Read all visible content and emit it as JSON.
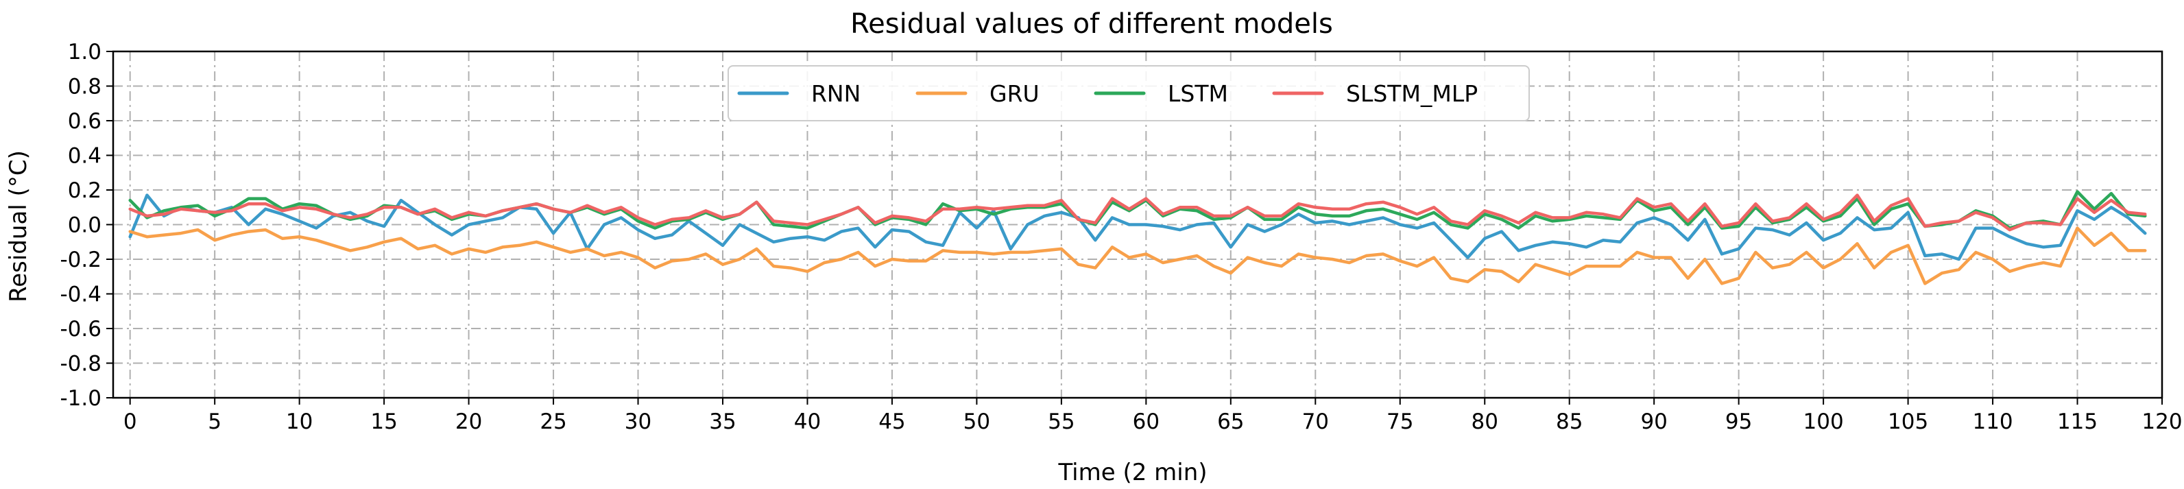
{
  "chart_data": {
    "type": "line",
    "title": "Residual values of different models",
    "xlabel": "Time (2 min)",
    "ylabel": "Residual (°C)",
    "xlim": [
      -1,
      120
    ],
    "ylim": [
      -1.0,
      1.0
    ],
    "grid": true,
    "legend_position": "top-center",
    "x_ticks": [
      0,
      5,
      10,
      15,
      20,
      25,
      30,
      35,
      40,
      45,
      50,
      55,
      60,
      65,
      70,
      75,
      80,
      85,
      90,
      95,
      100,
      105,
      110,
      115,
      120
    ],
    "x_tick_labels": [
      "0",
      "5",
      "10",
      "15",
      "20",
      "25",
      "30",
      "35",
      "40",
      "45",
      "50",
      "55",
      "60",
      "65",
      "70",
      "75",
      "80",
      "85",
      "90",
      "95",
      "100",
      "105",
      "110",
      "115",
      "120"
    ],
    "y_ticks": [
      -1.0,
      -0.8,
      -0.6,
      -0.4,
      -0.2,
      0.0,
      0.2,
      0.4,
      0.6,
      0.8,
      1.0
    ],
    "y_tick_labels": [
      "-1.0",
      "-0.8",
      "-0.6",
      "-0.4",
      "-0.2",
      "0.0",
      "0.2",
      "0.4",
      "0.6",
      "0.8",
      "1.0"
    ],
    "series": [
      {
        "name": "RNN",
        "color": "#3a9ac9",
        "values": [
          -0.07,
          0.17,
          0.05,
          0.1,
          0.08,
          0.07,
          0.1,
          0.0,
          0.09,
          0.06,
          0.02,
          -0.02,
          0.05,
          0.07,
          0.02,
          -0.01,
          0.14,
          0.07,
          0.0,
          -0.06,
          0.0,
          0.02,
          0.04,
          0.1,
          0.09,
          -0.05,
          0.07,
          -0.14,
          0.0,
          0.04,
          -0.03,
          -0.08,
          -0.06,
          0.02,
          -0.05,
          -0.12,
          0.0,
          -0.05,
          -0.1,
          -0.08,
          -0.07,
          -0.09,
          -0.04,
          -0.02,
          -0.13,
          -0.03,
          -0.04,
          -0.1,
          -0.12,
          0.07,
          -0.02,
          0.08,
          -0.14,
          0.0,
          0.05,
          0.07,
          0.04,
          -0.09,
          0.04,
          0.0,
          0.0,
          -0.01,
          -0.03,
          0.0,
          0.01,
          -0.13,
          0.0,
          -0.04,
          0.0,
          0.06,
          0.01,
          0.02,
          0.0,
          0.02,
          0.04,
          0.0,
          -0.02,
          0.01,
          -0.09,
          -0.19,
          -0.08,
          -0.04,
          -0.15,
          -0.12,
          -0.1,
          -0.11,
          -0.13,
          -0.09,
          -0.1,
          0.01,
          0.04,
          0.0,
          -0.09,
          0.03,
          -0.17,
          -0.14,
          -0.02,
          -0.03,
          -0.06,
          0.01,
          -0.09,
          -0.05,
          0.04,
          -0.03,
          -0.02,
          0.07,
          -0.18,
          -0.17,
          -0.2,
          -0.02,
          -0.02,
          -0.07,
          -0.11,
          -0.13,
          -0.12,
          0.08,
          0.03,
          0.1,
          0.04,
          -0.05
        ]
      },
      {
        "name": "GRU",
        "color": "#f8a04a",
        "values": [
          -0.04,
          -0.07,
          -0.06,
          -0.05,
          -0.03,
          -0.09,
          -0.06,
          -0.04,
          -0.03,
          -0.08,
          -0.07,
          -0.09,
          -0.12,
          -0.15,
          -0.13,
          -0.1,
          -0.08,
          -0.14,
          -0.12,
          -0.17,
          -0.14,
          -0.16,
          -0.13,
          -0.12,
          -0.1,
          -0.13,
          -0.16,
          -0.14,
          -0.18,
          -0.16,
          -0.19,
          -0.25,
          -0.21,
          -0.2,
          -0.17,
          -0.23,
          -0.2,
          -0.14,
          -0.24,
          -0.25,
          -0.27,
          -0.22,
          -0.2,
          -0.16,
          -0.24,
          -0.2,
          -0.21,
          -0.21,
          -0.15,
          -0.16,
          -0.16,
          -0.17,
          -0.16,
          -0.16,
          -0.15,
          -0.14,
          -0.23,
          -0.25,
          -0.13,
          -0.19,
          -0.17,
          -0.22,
          -0.2,
          -0.18,
          -0.24,
          -0.28,
          -0.19,
          -0.22,
          -0.24,
          -0.17,
          -0.19,
          -0.2,
          -0.22,
          -0.18,
          -0.17,
          -0.21,
          -0.24,
          -0.19,
          -0.31,
          -0.33,
          -0.26,
          -0.27,
          -0.33,
          -0.23,
          -0.26,
          -0.29,
          -0.24,
          -0.24,
          -0.24,
          -0.16,
          -0.19,
          -0.19,
          -0.31,
          -0.2,
          -0.34,
          -0.31,
          -0.16,
          -0.25,
          -0.23,
          -0.16,
          -0.25,
          -0.2,
          -0.11,
          -0.25,
          -0.16,
          -0.12,
          -0.34,
          -0.28,
          -0.26,
          -0.16,
          -0.2,
          -0.27,
          -0.24,
          -0.22,
          -0.24,
          -0.02,
          -0.12,
          -0.05,
          -0.15,
          -0.15
        ]
      },
      {
        "name": "LSTM",
        "color": "#2ca85a",
        "values": [
          0.14,
          0.04,
          0.08,
          0.1,
          0.11,
          0.05,
          0.09,
          0.15,
          0.15,
          0.09,
          0.12,
          0.11,
          0.06,
          0.03,
          0.05,
          0.11,
          0.1,
          0.06,
          0.08,
          0.03,
          0.06,
          0.05,
          0.08,
          0.1,
          0.12,
          0.09,
          0.07,
          0.1,
          0.06,
          0.09,
          0.02,
          -0.02,
          0.02,
          0.03,
          0.07,
          0.03,
          0.06,
          0.13,
          0.0,
          -0.01,
          -0.02,
          0.02,
          0.06,
          0.1,
          0.0,
          0.04,
          0.03,
          0.0,
          0.12,
          0.08,
          0.09,
          0.06,
          0.09,
          0.1,
          0.1,
          0.12,
          0.03,
          0.0,
          0.13,
          0.08,
          0.14,
          0.05,
          0.09,
          0.08,
          0.03,
          0.04,
          0.1,
          0.03,
          0.03,
          0.1,
          0.06,
          0.05,
          0.05,
          0.08,
          0.09,
          0.06,
          0.03,
          0.07,
          0.0,
          -0.02,
          0.06,
          0.03,
          -0.02,
          0.05,
          0.02,
          0.03,
          0.05,
          0.04,
          0.03,
          0.14,
          0.08,
          0.1,
          0.0,
          0.1,
          -0.02,
          -0.01,
          0.1,
          0.01,
          0.03,
          0.1,
          0.02,
          0.05,
          0.15,
          0.0,
          0.09,
          0.12,
          -0.01,
          0.0,
          0.02,
          0.08,
          0.05,
          -0.02,
          0.01,
          0.02,
          0.0,
          0.19,
          0.09,
          0.18,
          0.06,
          0.05
        ]
      },
      {
        "name": "SLSTM_MLP",
        "color": "#ef6464",
        "values": [
          0.09,
          0.05,
          0.06,
          0.09,
          0.08,
          0.07,
          0.08,
          0.12,
          0.12,
          0.08,
          0.1,
          0.09,
          0.06,
          0.04,
          0.06,
          0.1,
          0.1,
          0.06,
          0.09,
          0.04,
          0.07,
          0.05,
          0.08,
          0.1,
          0.12,
          0.09,
          0.07,
          0.11,
          0.07,
          0.1,
          0.04,
          0.0,
          0.03,
          0.04,
          0.08,
          0.04,
          0.06,
          0.13,
          0.02,
          0.01,
          0.0,
          0.03,
          0.06,
          0.1,
          0.01,
          0.05,
          0.04,
          0.02,
          0.09,
          0.09,
          0.1,
          0.09,
          0.1,
          0.11,
          0.11,
          0.14,
          0.03,
          0.01,
          0.15,
          0.09,
          0.15,
          0.06,
          0.1,
          0.1,
          0.05,
          0.05,
          0.1,
          0.05,
          0.05,
          0.12,
          0.1,
          0.09,
          0.09,
          0.12,
          0.13,
          0.1,
          0.06,
          0.1,
          0.02,
          0.0,
          0.08,
          0.05,
          0.01,
          0.07,
          0.04,
          0.04,
          0.07,
          0.06,
          0.04,
          0.15,
          0.1,
          0.12,
          0.02,
          0.12,
          -0.01,
          0.01,
          0.12,
          0.02,
          0.04,
          0.12,
          0.03,
          0.07,
          0.17,
          0.02,
          0.11,
          0.15,
          -0.01,
          0.01,
          0.02,
          0.07,
          0.04,
          -0.03,
          0.01,
          0.01,
          0.0,
          0.15,
          0.07,
          0.14,
          0.07,
          0.06
        ]
      }
    ]
  }
}
